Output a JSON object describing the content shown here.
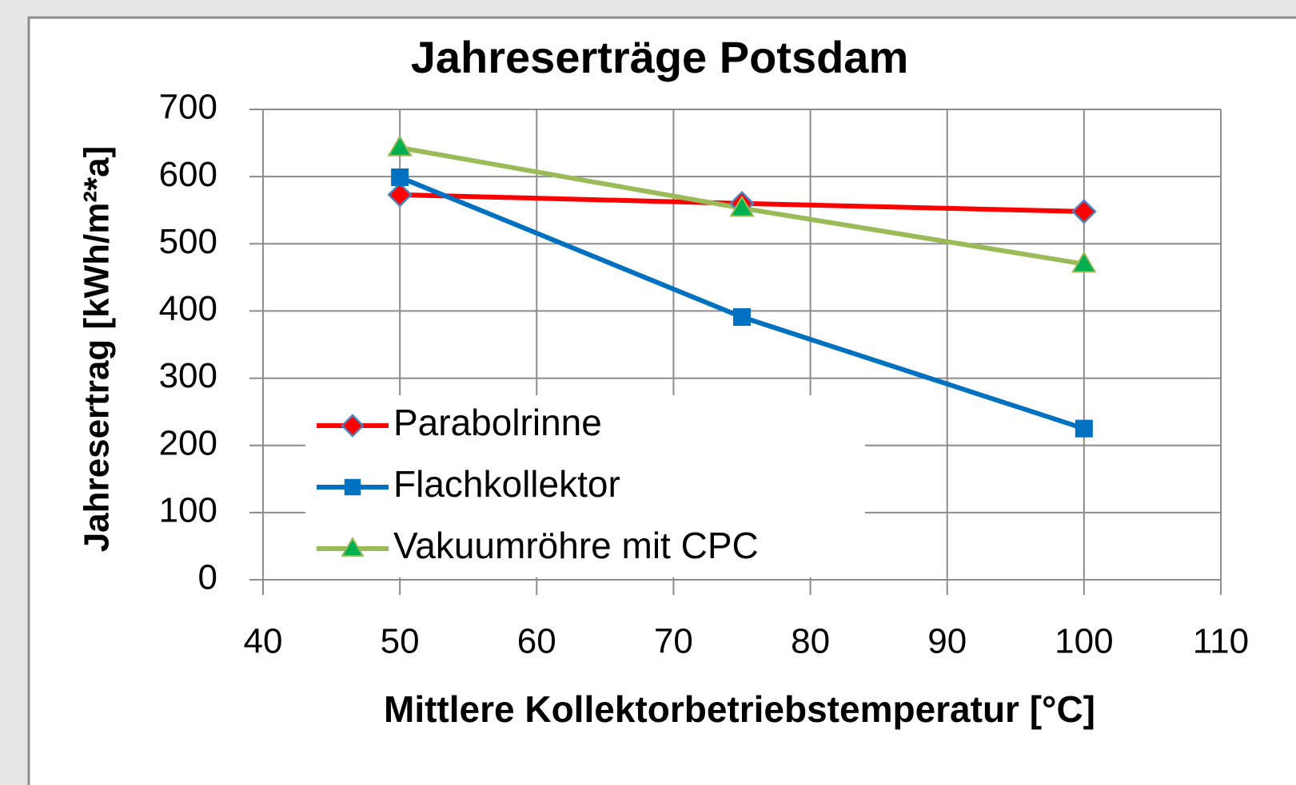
{
  "chart_data": {
    "type": "line",
    "title": "Jahreserträge Potsdam",
    "x_label": "Mittlere Kollektorbetriebstemperatur [°C]",
    "y_label": "Jahresertrag  [kWh/m²*a]",
    "x": [
      50,
      75,
      100
    ],
    "series": [
      {
        "name": "Parabolrinne",
        "color": "#ff0000",
        "marker": "diamond",
        "values": [
          573,
          560,
          548
        ]
      },
      {
        "name": "Flachkollektor",
        "color": "#0070c0",
        "marker": "square",
        "values": [
          599,
          391,
          225
        ]
      },
      {
        "name": "Vakuumröhre mit CPC",
        "color": "#9bbb59",
        "marker": "triangle",
        "values": [
          643,
          553,
          470
        ]
      }
    ],
    "xlim": [
      40,
      110
    ],
    "xticks": [
      40,
      50,
      60,
      70,
      80,
      90,
      100,
      110
    ],
    "ylim": [
      0,
      700
    ],
    "yticks": [
      0,
      100,
      200,
      300,
      400,
      500,
      600,
      700
    ],
    "grid": true,
    "legend": "lower left"
  }
}
